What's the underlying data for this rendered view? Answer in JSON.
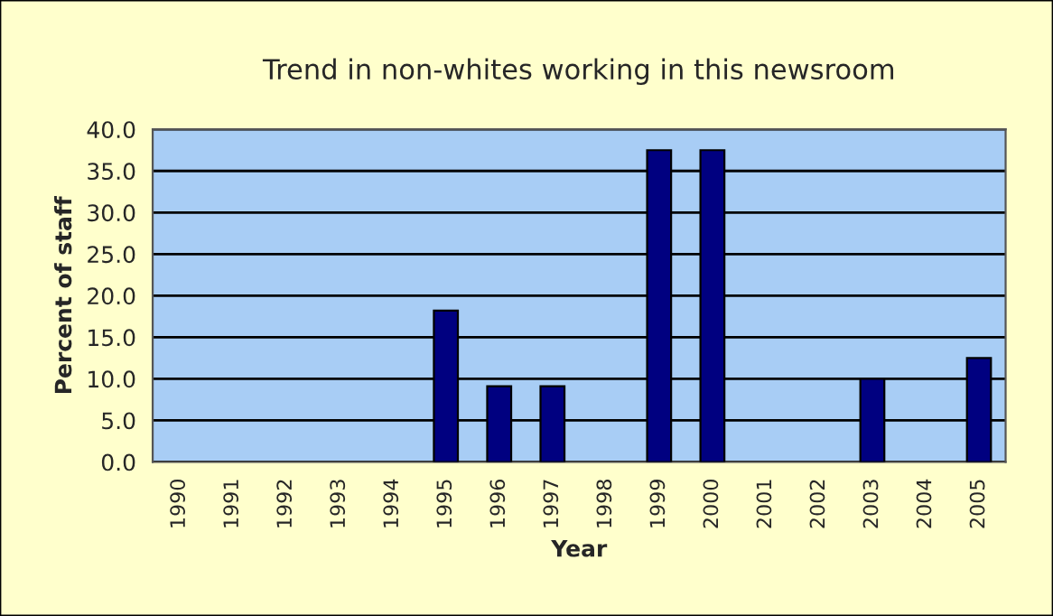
{
  "chart_data": {
    "type": "bar",
    "title": "Trend in non-whites working in this newsroom",
    "xlabel": "Year",
    "ylabel": "Percent of staff",
    "categories": [
      "1990",
      "1991",
      "1992",
      "1993",
      "1994",
      "1995",
      "1996",
      "1997",
      "1998",
      "1999",
      "2000",
      "2001",
      "2002",
      "2003",
      "2004",
      "2005"
    ],
    "values": [
      null,
      null,
      null,
      null,
      null,
      18.2,
      9.1,
      9.1,
      null,
      37.5,
      37.5,
      null,
      null,
      10.0,
      null,
      12.5
    ],
    "color": "#000080",
    "ylim": [
      0,
      40
    ],
    "yticks": [
      {
        "value": 0,
        "label": "0.0"
      },
      {
        "value": 5,
        "label": "5.0"
      },
      {
        "value": 10,
        "label": "10.0"
      },
      {
        "value": 15,
        "label": "15.0"
      },
      {
        "value": 20,
        "label": "20.0"
      },
      {
        "value": 25,
        "label": "25.0"
      },
      {
        "value": 30,
        "label": "30.0"
      },
      {
        "value": 35,
        "label": "35.0"
      },
      {
        "value": 40,
        "label": "40.0"
      }
    ],
    "grid": "y",
    "legend": false
  }
}
